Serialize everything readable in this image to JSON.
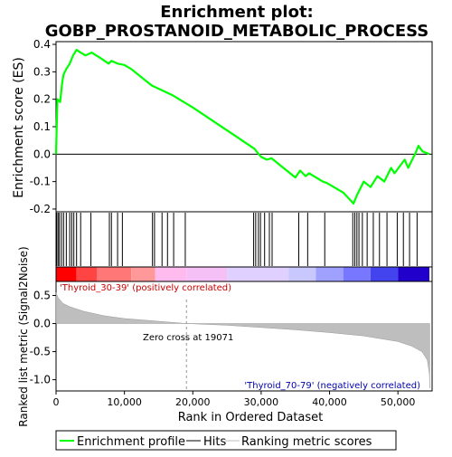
{
  "chart_data": {
    "type": "line",
    "title_line1": "Enrichment plot:",
    "title_line2": "GOBP_PROSTANOID_METABOLIC_PROCESS",
    "xlabel": "Rank in Ordered Dataset",
    "ylabel_top": "Enrichment score (ES)",
    "ylabel_bottom": "Ranked list metric (Signal2Noise)",
    "xlim": [
      0,
      55000
    ],
    "es_ylim": [
      -0.21,
      0.41
    ],
    "metric_ylim": [
      -1.2,
      0.75
    ],
    "x_ticks": [
      0,
      10000,
      20000,
      30000,
      40000,
      50000
    ],
    "x_tick_labels": [
      "0",
      "10,000",
      "20,000",
      "30,000",
      "40,000",
      "50,000"
    ],
    "es_ticks": [
      -0.2,
      -0.1,
      0.0,
      0.1,
      0.2,
      0.3,
      0.4
    ],
    "es_tick_labels": [
      "-0.2",
      "-0.1",
      "0.0",
      "0.1",
      "0.2",
      "0.3",
      "0.4"
    ],
    "metric_ticks": [
      -1.0,
      -0.5,
      0.0,
      0.5
    ],
    "metric_tick_labels": [
      "-1.0",
      "-0.5",
      "0.0",
      "0.5"
    ],
    "series": [
      {
        "name": "Enrichment profile",
        "color": "#00ff00",
        "points": [
          [
            0,
            0.0
          ],
          [
            200,
            0.2
          ],
          [
            600,
            0.19
          ],
          [
            900,
            0.26
          ],
          [
            1100,
            0.29
          ],
          [
            1500,
            0.31
          ],
          [
            2000,
            0.33
          ],
          [
            2500,
            0.36
          ],
          [
            3000,
            0.38
          ],
          [
            3600,
            0.37
          ],
          [
            4300,
            0.36
          ],
          [
            5200,
            0.37
          ],
          [
            6500,
            0.35
          ],
          [
            7700,
            0.33
          ],
          [
            8100,
            0.34
          ],
          [
            9000,
            0.33
          ],
          [
            10000,
            0.325
          ],
          [
            11000,
            0.31
          ],
          [
            12500,
            0.28
          ],
          [
            14000,
            0.25
          ],
          [
            17000,
            0.215
          ],
          [
            20000,
            0.17
          ],
          [
            23000,
            0.12
          ],
          [
            26000,
            0.07
          ],
          [
            29000,
            0.02
          ],
          [
            30000,
            -0.01
          ],
          [
            30800,
            -0.02
          ],
          [
            31500,
            -0.015
          ],
          [
            35000,
            -0.085
          ],
          [
            35700,
            -0.06
          ],
          [
            36500,
            -0.08
          ],
          [
            37000,
            -0.07
          ],
          [
            39000,
            -0.1
          ],
          [
            39600,
            -0.105
          ],
          [
            42000,
            -0.14
          ],
          [
            43500,
            -0.18
          ],
          [
            44000,
            -0.15
          ],
          [
            45000,
            -0.1
          ],
          [
            46000,
            -0.12
          ],
          [
            47000,
            -0.08
          ],
          [
            48000,
            -0.1
          ],
          [
            49000,
            -0.05
          ],
          [
            49500,
            -0.07
          ],
          [
            51000,
            -0.02
          ],
          [
            51500,
            -0.05
          ],
          [
            52500,
            0.0
          ],
          [
            53000,
            0.03
          ],
          [
            53600,
            0.01
          ],
          [
            54600,
            0.0
          ]
        ]
      }
    ],
    "hits": [
      100,
      300,
      500,
      800,
      1100,
      1500,
      2000,
      2300,
      2600,
      3000,
      3600,
      5100,
      7800,
      8100,
      9000,
      9700,
      14100,
      14400,
      15500,
      16300,
      17200,
      18900,
      28900,
      29200,
      29600,
      29900,
      30500,
      31200,
      31600,
      35500,
      36800,
      39300,
      43400,
      43700,
      44000,
      44300,
      44800,
      45500,
      46400,
      47300,
      48400,
      49900,
      50800,
      51700,
      52800
    ],
    "metric_profile": [
      [
        0,
        0.55
      ],
      [
        300,
        0.46
      ],
      [
        1000,
        0.36
      ],
      [
        2000,
        0.3
      ],
      [
        4000,
        0.22
      ],
      [
        7000,
        0.14
      ],
      [
        10000,
        0.09
      ],
      [
        14000,
        0.05
      ],
      [
        19071,
        0.0
      ],
      [
        25000,
        -0.03
      ],
      [
        30000,
        -0.07
      ],
      [
        35000,
        -0.11
      ],
      [
        40000,
        -0.16
      ],
      [
        45000,
        -0.22
      ],
      [
        50000,
        -0.32
      ],
      [
        52000,
        -0.4
      ],
      [
        53500,
        -0.5
      ],
      [
        54300,
        -0.65
      ],
      [
        54600,
        -0.9
      ],
      [
        54650,
        -1.15
      ]
    ],
    "metric_fill_color": "#bebebe",
    "zero_cross_label": "Zero cross at 19071",
    "zero_cross_x": 19071,
    "pos_label": "'Thyroid_30-39' (positively correlated)",
    "neg_label": "'Thyroid_70-79' (negatively correlated)",
    "pos_label_color": "#cc0000",
    "neg_label_color": "#0000aa",
    "heatmap_colors": [
      "#ff0000",
      "#ff4444",
      "#ff7777",
      "#ff9999",
      "#ffbbee",
      "#f5c0f5",
      "#e0d0ff",
      "#c8c8ff",
      "#a0a0ff",
      "#7777ff",
      "#4444ee",
      "#2200cc"
    ],
    "heatmap_breaks": [
      0,
      3000,
      6000,
      11000,
      14500,
      19071,
      25000,
      34000,
      38000,
      42000,
      46000,
      50000,
      54600
    ],
    "legend": [
      {
        "label": "Enrichment profile",
        "color": "#00ff00"
      },
      {
        "label": "Hits",
        "color": "#000000"
      },
      {
        "label": "Ranking metric scores",
        "color": "#bebebe"
      }
    ]
  }
}
